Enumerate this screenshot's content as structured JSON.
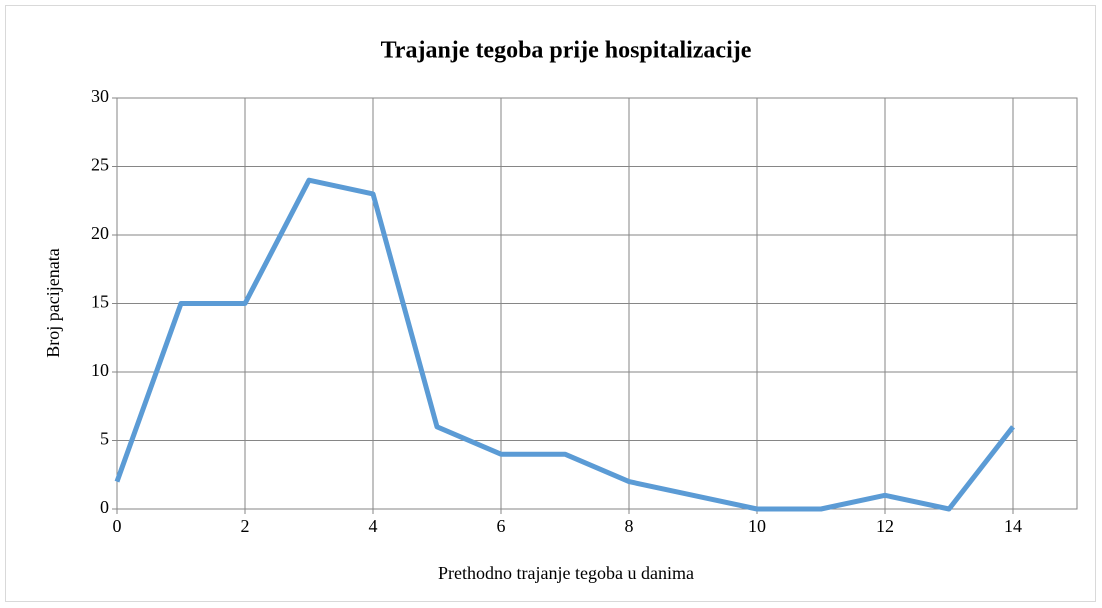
{
  "chart_data": {
    "type": "line",
    "title": "Trajanje tegoba prije hospitalizacije",
    "x_label": "Prethodno trajanje tegoba u danima",
    "y_label": "Broj pacijenata",
    "x": [
      0,
      1,
      2,
      3,
      4,
      5,
      6,
      7,
      8,
      9,
      10,
      11,
      12,
      13,
      14
    ],
    "series": [
      {
        "name": "Broj pacijenata",
        "color": "#5b9bd5",
        "values": [
          2,
          15,
          15,
          24,
          23,
          6,
          4,
          4,
          2,
          1,
          0,
          0,
          1,
          0,
          6
        ]
      }
    ],
    "xlim": [
      0,
      15
    ],
    "xticks": [
      0,
      2,
      4,
      6,
      8,
      10,
      12,
      14
    ],
    "ylim": [
      0,
      30
    ],
    "yticks": [
      0,
      5,
      10,
      15,
      20,
      25,
      30
    ],
    "grid": true
  }
}
